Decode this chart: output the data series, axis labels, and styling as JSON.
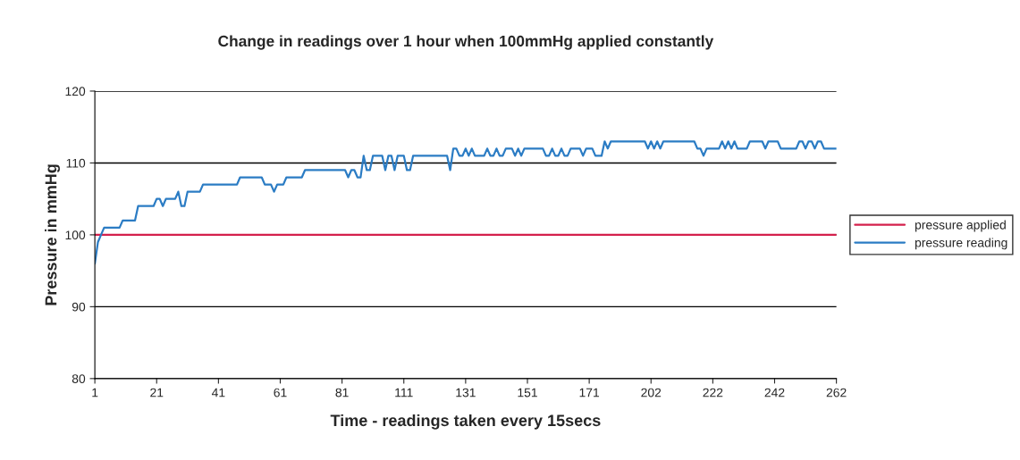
{
  "chart_data": {
    "type": "line",
    "title": "Change in readings over 1 hour when 100mmHg applied constantly",
    "xlabel": "Time - readings taken every 15secs",
    "ylabel": "Pressure in mmHg",
    "categories": [
      "1",
      null,
      null,
      null,
      null,
      null,
      null,
      null,
      null,
      null,
      null,
      null,
      null,
      null,
      null,
      null,
      null,
      null,
      null,
      null,
      "21",
      null,
      null,
      null,
      null,
      null,
      null,
      null,
      null,
      null,
      null,
      null,
      null,
      null,
      null,
      null,
      null,
      null,
      null,
      null,
      "41",
      null,
      null,
      null,
      null,
      null,
      null,
      null,
      null,
      null,
      null,
      null,
      null,
      null,
      null,
      null,
      null,
      null,
      null,
      null,
      "61",
      null,
      null,
      null,
      null,
      null,
      null,
      null,
      null,
      null,
      null,
      null,
      null,
      null,
      null,
      null,
      null,
      null,
      null,
      null,
      "81",
      null,
      null,
      null,
      null,
      null,
      null,
      null,
      null,
      null,
      null,
      null,
      null,
      null,
      null,
      null,
      null,
      null,
      null,
      null,
      "111",
      null,
      null,
      null,
      null,
      null,
      null,
      null,
      null,
      null,
      null,
      null,
      null,
      null,
      null,
      null,
      null,
      null,
      null,
      null,
      "131",
      null,
      null,
      null,
      null,
      null,
      null,
      null,
      null,
      null,
      null,
      null,
      null,
      null,
      null,
      null,
      null,
      null,
      null,
      null,
      "151",
      null,
      null,
      null,
      null,
      null,
      null,
      null,
      null,
      null,
      null,
      null,
      null,
      null,
      null,
      null,
      null,
      null,
      null,
      null,
      "171",
      null,
      null,
      null,
      null,
      null,
      null,
      null,
      null,
      null,
      null,
      null,
      null,
      null,
      null,
      null,
      null,
      null,
      null,
      null,
      "202",
      null,
      null,
      null,
      null,
      null,
      null,
      null,
      null,
      null,
      null,
      null,
      null,
      null,
      null,
      null,
      null,
      null,
      null,
      null,
      "222",
      null,
      null,
      null,
      null,
      null,
      null,
      null,
      null,
      null,
      null,
      null,
      null,
      null,
      null,
      null,
      null,
      null,
      null,
      null,
      "242",
      null,
      null,
      null,
      null,
      null,
      null,
      null,
      null,
      null,
      null,
      null,
      null,
      null,
      null,
      null,
      null,
      null,
      null,
      null,
      "262"
    ],
    "ylim": [
      80,
      120
    ],
    "yticks": [
      80,
      90,
      100,
      110,
      120
    ],
    "grid": "y",
    "legend": "right",
    "line_style": "solid",
    "marker": "none",
    "series": [
      {
        "name": "pressure applied",
        "color": "#d4204c",
        "values": [
          100,
          100,
          100,
          100,
          100,
          100,
          100,
          100,
          100,
          100,
          100,
          100,
          100,
          100,
          100,
          100,
          100,
          100,
          100,
          100,
          100,
          100,
          100,
          100,
          100,
          100,
          100,
          100,
          100,
          100,
          100,
          100,
          100,
          100,
          100,
          100,
          100,
          100,
          100,
          100,
          100,
          100,
          100,
          100,
          100,
          100,
          100,
          100,
          100,
          100,
          100,
          100,
          100,
          100,
          100,
          100,
          100,
          100,
          100,
          100,
          100,
          100,
          100,
          100,
          100,
          100,
          100,
          100,
          100,
          100,
          100,
          100,
          100,
          100,
          100,
          100,
          100,
          100,
          100,
          100,
          100,
          100,
          100,
          100,
          100,
          100,
          100,
          100,
          100,
          100,
          100,
          100,
          100,
          100,
          100,
          100,
          100,
          100,
          100,
          100,
          100,
          100,
          100,
          100,
          100,
          100,
          100,
          100,
          100,
          100,
          100,
          100,
          100,
          100,
          100,
          100,
          100,
          100,
          100,
          100,
          100,
          100,
          100,
          100,
          100,
          100,
          100,
          100,
          100,
          100,
          100,
          100,
          100,
          100,
          100,
          100,
          100,
          100,
          100,
          100,
          100,
          100,
          100,
          100,
          100,
          100,
          100,
          100,
          100,
          100,
          100,
          100,
          100,
          100,
          100,
          100,
          100,
          100,
          100,
          100,
          100,
          100,
          100,
          100,
          100,
          100,
          100,
          100,
          100,
          100,
          100,
          100,
          100,
          100,
          100,
          100,
          100,
          100,
          100,
          100,
          100,
          100,
          100,
          100,
          100,
          100,
          100,
          100,
          100,
          100,
          100,
          100,
          100,
          100,
          100,
          100,
          100,
          100,
          100,
          100,
          100,
          100,
          100,
          100,
          100,
          100,
          100,
          100,
          100,
          100,
          100,
          100,
          100,
          100,
          100,
          100,
          100,
          100,
          100,
          100,
          100,
          100,
          100,
          100,
          100,
          100,
          100,
          100,
          100,
          100,
          100,
          100,
          100,
          100,
          100,
          100,
          100,
          100,
          100,
          100,
          100
        ]
      },
      {
        "name": "pressure reading",
        "color": "#2b7cc4",
        "values": [
          96,
          99,
          100,
          101,
          101,
          101,
          101,
          101,
          101,
          102,
          102,
          102,
          102,
          102,
          104,
          104,
          104,
          104,
          104,
          104,
          105,
          105,
          104,
          105,
          105,
          105,
          105,
          106,
          104,
          104,
          106,
          106,
          106,
          106,
          106,
          107,
          107,
          107,
          107,
          107,
          107,
          107,
          107,
          107,
          107,
          107,
          107,
          108,
          108,
          108,
          108,
          108,
          108,
          108,
          108,
          107,
          107,
          107,
          106,
          107,
          107,
          107,
          108,
          108,
          108,
          108,
          108,
          108,
          109,
          109,
          109,
          109,
          109,
          109,
          109,
          109,
          109,
          109,
          109,
          109,
          109,
          109,
          108,
          109,
          109,
          108,
          108,
          111,
          109,
          109,
          111,
          111,
          111,
          111,
          109,
          111,
          111,
          109,
          111,
          111,
          111,
          109,
          109,
          111,
          111,
          111,
          111,
          111,
          111,
          111,
          111,
          111,
          111,
          111,
          111,
          109,
          112,
          112,
          111,
          111,
          112,
          111,
          112,
          111,
          111,
          111,
          111,
          112,
          111,
          111,
          112,
          111,
          111,
          112,
          112,
          112,
          111,
          112,
          111,
          112,
          112,
          112,
          112,
          112,
          112,
          112,
          111,
          111,
          112,
          111,
          111,
          112,
          111,
          111,
          112,
          112,
          112,
          112,
          111,
          112,
          112,
          112,
          111,
          111,
          111,
          113,
          112,
          113,
          113,
          113,
          113,
          113,
          113,
          113,
          113,
          113,
          113,
          113,
          113,
          112,
          113,
          112,
          113,
          112,
          113,
          113,
          113,
          113,
          113,
          113,
          113,
          113,
          113,
          113,
          113,
          112,
          112,
          111,
          112,
          112,
          112,
          112,
          112,
          113,
          112,
          113,
          112,
          113,
          112,
          112,
          112,
          112,
          113,
          113,
          113,
          113,
          113,
          112,
          113,
          113,
          113,
          113,
          112,
          112,
          112,
          112,
          112,
          112,
          113,
          113,
          112,
          113,
          113,
          112,
          113,
          113,
          112,
          112,
          112,
          112,
          112
        ]
      }
    ]
  }
}
